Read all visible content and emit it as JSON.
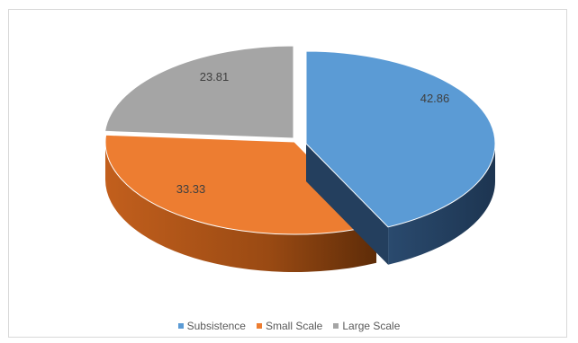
{
  "chart_data": {
    "type": "pie",
    "style": "3d-exploded",
    "categories": [
      "Subsistence",
      "Small Scale",
      "Large Scale"
    ],
    "values": [
      42.86,
      33.33,
      23.81
    ],
    "data_labels": [
      "42.86",
      "33.33",
      "23.81"
    ],
    "colors": [
      "#5b9bd5",
      "#ed7d31",
      "#a5a5a5"
    ],
    "side_colors": [
      "#203a56",
      "#7a3a0c",
      "#5d5d5d"
    ],
    "legend_position": "bottom",
    "title": ""
  }
}
